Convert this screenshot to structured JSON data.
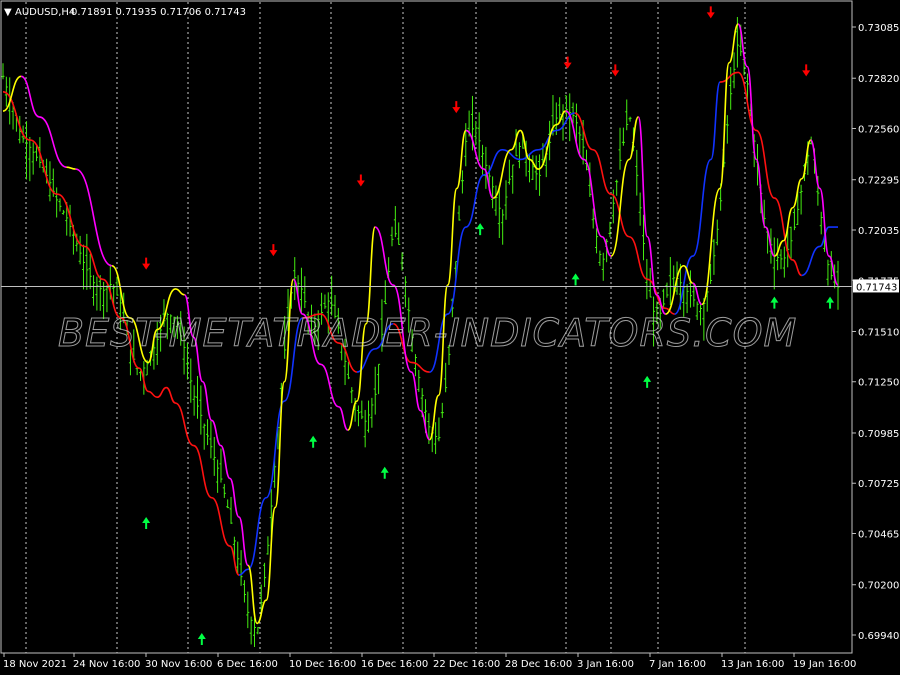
{
  "window": {
    "symbol_title": "AUDUSD,H4",
    "ohlc": "0.71891 0.71935 0.71706 0.71743",
    "menu_glyph": "▼"
  },
  "watermark": "BEST-METATRADER-INDICATORS.COM",
  "chart_data": {
    "type": "candlestick",
    "symbol": "AUDUSD",
    "timeframe": "H4",
    "last_price": "0.71743",
    "price_ticks": [
      "0.73085",
      "0.72820",
      "0.72560",
      "0.72295",
      "0.72035",
      "0.71775",
      "0.71510",
      "0.71250",
      "0.70985",
      "0.70725",
      "0.70465",
      "0.70200",
      "0.69940"
    ],
    "ylim": [
      0.6985,
      0.7334
    ],
    "time_labels": [
      "18 Nov 2021",
      "24 Nov 16:00",
      "30 Nov 16:00",
      "6 Dec 16:00",
      "10 Dec 16:00",
      "16 Dec 16:00",
      "22 Dec 16:00",
      "28 Dec 16:00",
      "3 Jan 16:00",
      "7 Jan 16:00",
      "13 Jan 16:00",
      "19 Jan 16:00"
    ],
    "grid": "vertical dotted",
    "colors": {
      "background": "#000000",
      "bars": "#44ee11",
      "trend_up": "#ffff00",
      "trend_down": "#ff00ff",
      "slow_down": "#ff1111",
      "slow_up": "#1133ff",
      "arrow_buy": "#00ff44",
      "arrow_sell": "#ff0000",
      "last_price_line": "#c0c0c0"
    },
    "close_path": [
      0.7283,
      0.7268,
      0.7252,
      0.7246,
      0.7239,
      0.723,
      0.7218,
      0.721,
      0.7198,
      0.7185,
      0.7176,
      0.7172,
      0.7176,
      0.7165,
      0.7142,
      0.7129,
      0.7135,
      0.7147,
      0.716,
      0.7158,
      0.7142,
      0.7118,
      0.7105,
      0.709,
      0.7075,
      0.7055,
      0.703,
      0.7005,
      0.6995,
      0.703,
      0.7085,
      0.714,
      0.718,
      0.7172,
      0.715,
      0.716,
      0.7168,
      0.7152,
      0.7128,
      0.711,
      0.7104,
      0.7118,
      0.716,
      0.7205,
      0.719,
      0.715,
      0.7122,
      0.71,
      0.7095,
      0.713,
      0.7195,
      0.725,
      0.7258,
      0.724,
      0.7225,
      0.721,
      0.7235,
      0.7248,
      0.724,
      0.723,
      0.7245,
      0.7262,
      0.7266,
      0.7262,
      0.7245,
      0.721,
      0.7185,
      0.721,
      0.724,
      0.7265,
      0.7225,
      0.7175,
      0.7155,
      0.7168,
      0.718,
      0.7174,
      0.7168,
      0.7162,
      0.7178,
      0.7215,
      0.7268,
      0.7302,
      0.728,
      0.724,
      0.7205,
      0.719,
      0.7188,
      0.72,
      0.7225,
      0.725,
      0.7215,
      0.7182,
      0.7174
    ],
    "fast_trend": {
      "segments": [
        {
          "color": "yellow",
          "points": [
            [
              0,
              0.7265
            ],
            [
              2,
              0.7283
            ]
          ]
        },
        {
          "color": "magenta",
          "points": [
            [
              2,
              0.7283
            ],
            [
              4,
              0.7262
            ],
            [
              7,
              0.7236
            ]
          ]
        },
        {
          "color": "yellow",
          "points": [
            [
              7,
              0.7236
            ],
            [
              8,
              0.7235
            ]
          ]
        },
        {
          "color": "magenta",
          "points": [
            [
              8,
              0.7235
            ],
            [
              12,
              0.7185
            ]
          ]
        },
        {
          "color": "yellow",
          "points": [
            [
              12,
              0.7185
            ],
            [
              14,
              0.7158
            ],
            [
              16,
              0.7135
            ],
            [
              17,
              0.7152
            ],
            [
              19,
              0.7173
            ],
            [
              20,
              0.717
            ]
          ]
        },
        {
          "color": "magenta",
          "points": [
            [
              20,
              0.717
            ],
            [
              21,
              0.7148
            ],
            [
              22,
              0.7125
            ],
            [
              23,
              0.7105
            ],
            [
              24,
              0.7092
            ],
            [
              25,
              0.7075
            ],
            [
              26,
              0.7055
            ],
            [
              27,
              0.703
            ]
          ]
        },
        {
          "color": "yellow",
          "points": [
            [
              27,
              0.703
            ],
            [
              28,
              0.7
            ],
            [
              29,
              0.7012
            ],
            [
              30,
              0.706
            ],
            [
              31,
              0.7125
            ],
            [
              32,
              0.7178
            ]
          ]
        },
        {
          "color": "magenta",
          "points": [
            [
              32,
              0.7178
            ],
            [
              33,
              0.716
            ],
            [
              35,
              0.7134
            ],
            [
              37,
              0.7112
            ],
            [
              38,
              0.71
            ]
          ]
        },
        {
          "color": "yellow",
          "points": [
            [
              38,
              0.71
            ],
            [
              39,
              0.7115
            ],
            [
              40,
              0.7155
            ],
            [
              41,
              0.7205
            ]
          ]
        },
        {
          "color": "magenta",
          "points": [
            [
              41,
              0.7205
            ],
            [
              43,
              0.7175
            ],
            [
              45,
              0.713
            ],
            [
              46,
              0.711
            ],
            [
              47,
              0.7095
            ]
          ]
        },
        {
          "color": "yellow",
          "points": [
            [
              47,
              0.7095
            ],
            [
              48,
              0.7118
            ],
            [
              49,
              0.7175
            ],
            [
              50,
              0.7225
            ],
            [
              51,
              0.7255
            ]
          ]
        },
        {
          "color": "magenta",
          "points": [
            [
              51,
              0.7255
            ],
            [
              53,
              0.7235
            ],
            [
              54,
              0.722
            ]
          ]
        },
        {
          "color": "yellow",
          "points": [
            [
              54,
              0.722
            ],
            [
              56,
              0.7245
            ],
            [
              57,
              0.7255
            ],
            [
              58,
              0.724
            ],
            [
              59,
              0.7235
            ],
            [
              61,
              0.7258
            ],
            [
              62,
              0.7265
            ]
          ]
        },
        {
          "color": "magenta",
          "points": [
            [
              62,
              0.7265
            ],
            [
              64,
              0.724
            ],
            [
              66,
              0.72
            ],
            [
              67,
              0.719
            ]
          ]
        },
        {
          "color": "yellow",
          "points": [
            [
              67,
              0.719
            ],
            [
              69,
              0.724
            ],
            [
              70,
              0.7262
            ]
          ]
        },
        {
          "color": "magenta",
          "points": [
            [
              70,
              0.7262
            ],
            [
              71,
              0.72
            ],
            [
              72,
              0.717
            ],
            [
              73,
              0.716
            ]
          ]
        },
        {
          "color": "yellow",
          "points": [
            [
              73,
              0.716
            ],
            [
              75,
              0.7185
            ],
            [
              76,
              0.7176
            ]
          ]
        },
        {
          "color": "magenta",
          "points": [
            [
              76,
              0.7176
            ],
            [
              77,
              0.7165
            ]
          ]
        },
        {
          "color": "yellow",
          "points": [
            [
              77,
              0.7165
            ],
            [
              79,
              0.7225
            ],
            [
              80,
              0.729
            ],
            [
              81,
              0.731
            ]
          ]
        },
        {
          "color": "magenta",
          "points": [
            [
              81,
              0.731
            ],
            [
              82,
              0.7288
            ],
            [
              83,
              0.724
            ],
            [
              84,
              0.7205
            ],
            [
              85,
              0.719
            ]
          ]
        },
        {
          "color": "yellow",
          "points": [
            [
              85,
              0.719
            ],
            [
              86,
              0.7198
            ],
            [
              87,
              0.7215
            ],
            [
              88,
              0.723
            ],
            [
              89,
              0.725
            ]
          ]
        },
        {
          "color": "magenta",
          "points": [
            [
              89,
              0.725
            ],
            [
              90,
              0.7225
            ],
            [
              91,
              0.719
            ],
            [
              92,
              0.7175
            ]
          ]
        }
      ]
    },
    "slow_trend": {
      "segments": [
        {
          "color": "red",
          "points": [
            [
              0,
              0.7275
            ],
            [
              3,
              0.725
            ],
            [
              6,
              0.7222
            ],
            [
              9,
              0.7195
            ],
            [
              11,
              0.7178
            ],
            [
              13,
              0.7158
            ],
            [
              15,
              0.7132
            ],
            [
              16,
              0.712
            ],
            [
              17,
              0.7117
            ],
            [
              18,
              0.7122
            ],
            [
              19,
              0.7114
            ],
            [
              21,
              0.7092
            ],
            [
              23,
              0.7065
            ],
            [
              25,
              0.704
            ],
            [
              26,
              0.7025
            ]
          ]
        },
        {
          "color": "blue",
          "points": [
            [
              26,
              0.7025
            ],
            [
              27,
              0.7028
            ],
            [
              29,
              0.7065
            ],
            [
              31,
              0.7115
            ],
            [
              33,
              0.7158
            ]
          ]
        },
        {
          "color": "red",
          "points": [
            [
              33,
              0.7158
            ],
            [
              35,
              0.716
            ],
            [
              37,
              0.7145
            ],
            [
              39,
              0.713
            ]
          ]
        },
        {
          "color": "blue",
          "points": [
            [
              39,
              0.713
            ],
            [
              41,
              0.7142
            ],
            [
              43,
              0.7155
            ]
          ]
        },
        {
          "color": "red",
          "points": [
            [
              43,
              0.7155
            ],
            [
              45,
              0.7135
            ],
            [
              47,
              0.713
            ]
          ]
        },
        {
          "color": "blue",
          "points": [
            [
              47,
              0.713
            ],
            [
              49,
              0.716
            ],
            [
              51,
              0.7205
            ],
            [
              53,
              0.7232
            ],
            [
              55,
              0.7245
            ],
            [
              57,
              0.724
            ],
            [
              59,
              0.7245
            ],
            [
              61,
              0.7255
            ],
            [
              63,
              0.7264
            ]
          ]
        },
        {
          "color": "red",
          "points": [
            [
              63,
              0.7264
            ],
            [
              65,
              0.7245
            ],
            [
              67,
              0.7222
            ],
            [
              69,
              0.72
            ],
            [
              71,
              0.7178
            ],
            [
              73,
              0.7163
            ],
            [
              74,
              0.716
            ]
          ]
        },
        {
          "color": "blue",
          "points": [
            [
              74,
              0.716
            ],
            [
              76,
              0.719
            ],
            [
              78,
              0.724
            ],
            [
              79,
              0.728
            ]
          ]
        },
        {
          "color": "red",
          "points": [
            [
              79,
              0.728
            ],
            [
              81,
              0.7285
            ],
            [
              83,
              0.7255
            ],
            [
              85,
              0.722
            ],
            [
              87,
              0.7188
            ],
            [
              88,
              0.718
            ]
          ]
        },
        {
          "color": "blue",
          "points": [
            [
              88,
              0.718
            ],
            [
              90,
              0.7195
            ],
            [
              91,
              0.7205
            ],
            [
              92,
              0.7205
            ]
          ]
        }
      ]
    },
    "sell_arrows": [
      {
        "i": 18,
        "price": 0.7184
      },
      {
        "i": 34,
        "price": 0.7191
      },
      {
        "i": 45,
        "price": 0.7227
      },
      {
        "i": 57,
        "price": 0.7265
      },
      {
        "i": 71,
        "price": 0.7288
      },
      {
        "i": 77,
        "price": 0.7284
      },
      {
        "i": 89,
        "price": 0.7314
      },
      {
        "i": 101,
        "price": 0.7284
      }
    ],
    "buy_arrows": [
      {
        "i": 18,
        "price": 0.7054
      },
      {
        "i": 25,
        "price": 0.6994
      },
      {
        "i": 39,
        "price": 0.7096
      },
      {
        "i": 48,
        "price": 0.708
      },
      {
        "i": 60,
        "price": 0.7206
      },
      {
        "i": 72,
        "price": 0.718
      },
      {
        "i": 81,
        "price": 0.7127
      },
      {
        "i": 97,
        "price": 0.7168
      },
      {
        "i": 104,
        "price": 0.7168
      }
    ]
  }
}
